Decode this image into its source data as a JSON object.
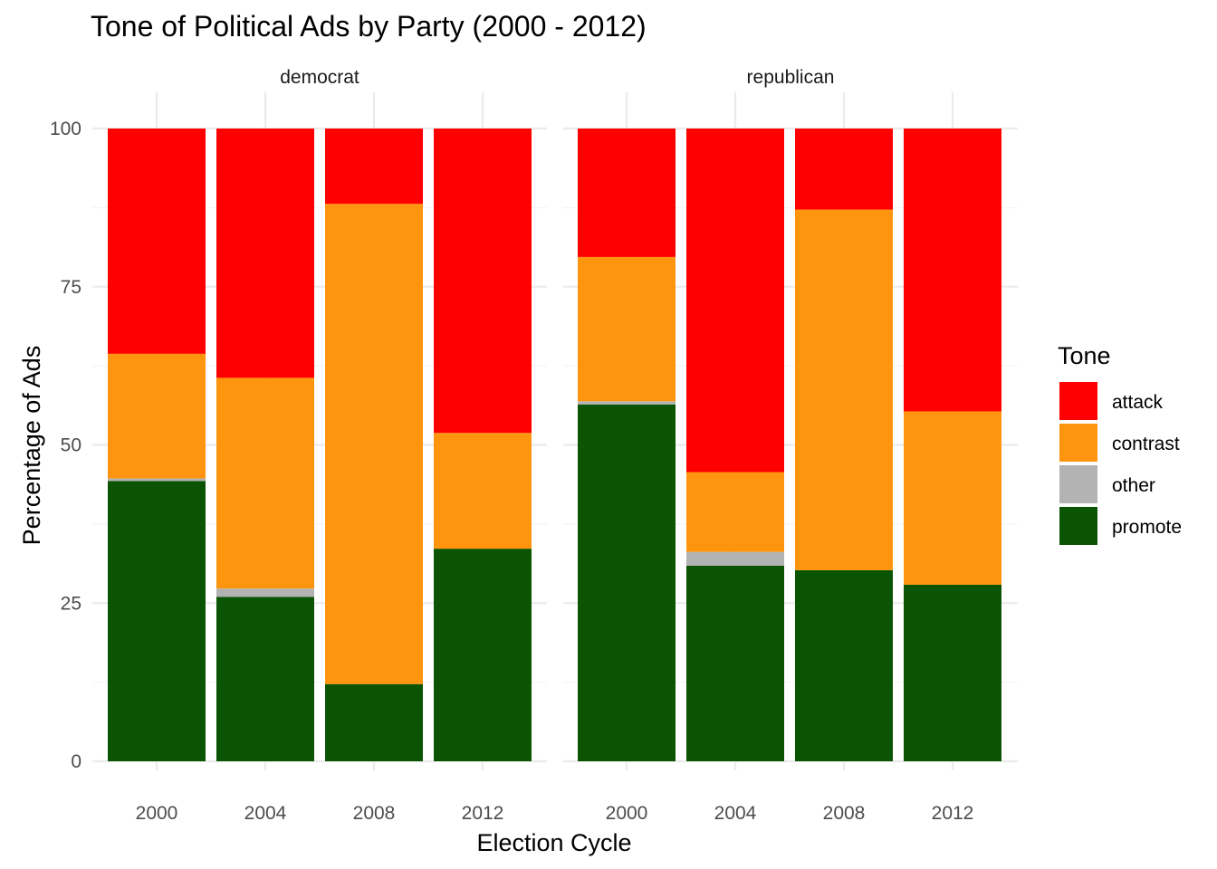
{
  "chart_data": {
    "type": "bar",
    "stacked": true,
    "title": "Tone of Political Ads by Party (2000 - 2012)",
    "xlabel": "Election Cycle",
    "ylabel": "Percentage of Ads",
    "ylim": [
      0,
      100
    ],
    "yticks": [
      "0",
      "25",
      "50",
      "75",
      "100"
    ],
    "grid": true,
    "legend": {
      "title": "Tone",
      "position": "right",
      "entries": [
        "attack",
        "contrast",
        "other",
        "promote"
      ]
    },
    "colors": {
      "attack": "#ff0000",
      "contrast": "#ff950e",
      "other": "#b3b3b3",
      "promote": "#0b5403"
    },
    "stack_order_bottom_to_top": [
      "promote",
      "other",
      "contrast",
      "attack"
    ],
    "facets": [
      {
        "label": "democrat",
        "categories": [
          "2000",
          "2004",
          "2008",
          "2012"
        ],
        "series": [
          {
            "name": "promote",
            "values": [
              44.3,
              26.0,
              12.2,
              33.6
            ]
          },
          {
            "name": "other",
            "values": [
              0.4,
              1.3,
              0.0,
              0.0
            ]
          },
          {
            "name": "contrast",
            "values": [
              19.7,
              33.3,
              75.9,
              18.3
            ]
          },
          {
            "name": "attack",
            "values": [
              35.6,
              39.4,
              11.9,
              48.1
            ]
          }
        ]
      },
      {
        "label": "republican",
        "categories": [
          "2000",
          "2004",
          "2008",
          "2012"
        ],
        "series": [
          {
            "name": "promote",
            "values": [
              56.4,
              30.9,
              30.2,
              27.9
            ]
          },
          {
            "name": "other",
            "values": [
              0.5,
              2.2,
              0.0,
              0.0
            ]
          },
          {
            "name": "contrast",
            "values": [
              22.8,
              12.6,
              57.0,
              27.4
            ]
          },
          {
            "name": "attack",
            "values": [
              20.3,
              54.3,
              12.8,
              44.7
            ]
          }
        ]
      }
    ]
  }
}
